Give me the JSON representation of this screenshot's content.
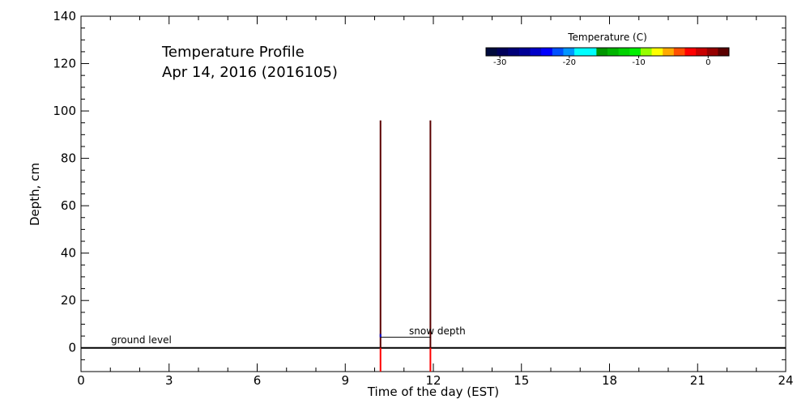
{
  "chart_data": {
    "type": "line",
    "title": "Temperature Profile",
    "subtitle": "Apr 14, 2016 (2016105)",
    "xlabel": "Time of the day (EST)",
    "ylabel": "Depth, cm",
    "xlim": [
      0,
      24
    ],
    "ylim": [
      -10,
      140
    ],
    "xticks": [
      0,
      3,
      6,
      9,
      12,
      15,
      18,
      21,
      24
    ],
    "yticks": [
      0,
      20,
      40,
      60,
      80,
      100,
      120,
      140
    ],
    "grid": false,
    "profiles": [
      {
        "time": 10.2,
        "depth_top": 96,
        "depth_bottom": -10,
        "surface_color": "#5a0000",
        "below_ground_color": "#ff0000"
      },
      {
        "time": 11.9,
        "depth_top": 96,
        "depth_bottom": -10,
        "surface_color": "#5a0000",
        "below_ground_color": "#ff0000"
      }
    ],
    "ground_level": {
      "label": "ground level",
      "depth": 0,
      "x_start": 0,
      "x_end": 24
    },
    "snow_depth": {
      "label": "snow depth",
      "depth": 4.5,
      "x_start": 10.2,
      "x_end": 11.9,
      "color": "#0000cc"
    },
    "colorbar": {
      "title": "Temperature (C)",
      "min": -32,
      "max": 3,
      "ticks": [
        -30,
        -20,
        -10,
        0
      ],
      "colors": [
        "#000a3c",
        "#00005a",
        "#000078",
        "#000096",
        "#0000c8",
        "#0000ff",
        "#0050ff",
        "#0096ff",
        "#00ffff",
        "#00ffff",
        "#009600",
        "#00b400",
        "#00d200",
        "#00f000",
        "#96ff00",
        "#ffff00",
        "#ffaa00",
        "#ff5000",
        "#ff0000",
        "#c80000",
        "#960000",
        "#5a0000"
      ]
    }
  }
}
